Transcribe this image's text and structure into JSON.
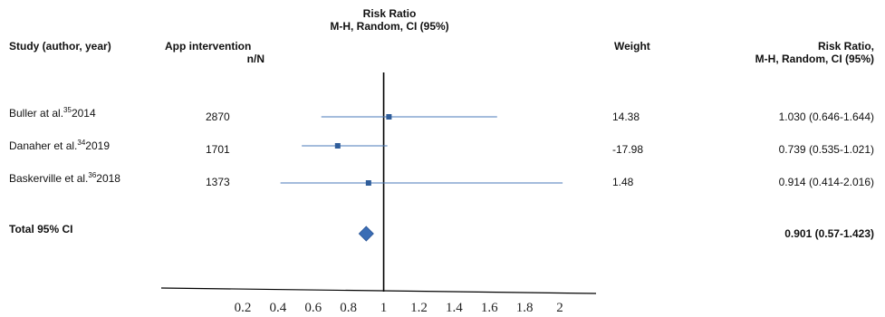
{
  "header": {
    "center_title_line1": "Risk Ratio",
    "center_title_line2": "M-H, Random, CI (95%)",
    "study_col": "Study (author, year)",
    "app_col_line1": "App intervention",
    "app_col_line2": "n/N",
    "weight_col": "Weight",
    "rr_col_line1": "Risk Ratio,",
    "rr_col_line2": "M-H, Random, CI (95%)"
  },
  "rows": [
    {
      "author": "Buller at al.",
      "ref": "35",
      "year": "2014",
      "n": "2870",
      "weight": "14.38",
      "rr_text": "1.030 (0.646-1.644)"
    },
    {
      "author": "Danaher et al.",
      "ref": "34",
      "year": "2019",
      "n": "1701",
      "weight": "-17.98",
      "rr_text": "0.739 (0.535-1.021)"
    },
    {
      "author": "Baskerville et al.",
      "ref": "36",
      "year": "2018",
      "n": "1373",
      "weight": "1.48",
      "rr_text": "0.914 (0.414-2.016)"
    }
  ],
  "total": {
    "label": "Total 95% CI",
    "rr_text": "0.901 (0.57-1.423)"
  },
  "colors": {
    "ci_line": "#4a7ab8",
    "marker": "#2f5d9a",
    "diamond": "#3a6db5",
    "axis": "#000000"
  },
  "chart_data": {
    "type": "forest",
    "x_ticks": [
      "0.2",
      "0.4",
      "0.6",
      "0.8",
      "1",
      "1.2",
      "1.4",
      "1.6",
      "1.8",
      "2"
    ],
    "xlim": [
      0.2,
      2
    ],
    "reference_line": 1,
    "studies": [
      {
        "name": "Buller at al. 2014",
        "rr": 1.03,
        "lower": 0.646,
        "upper": 1.644
      },
      {
        "name": "Danaher et al. 2019",
        "rr": 0.739,
        "lower": 0.535,
        "upper": 1.021
      },
      {
        "name": "Baskerville et al. 2018",
        "rr": 0.914,
        "lower": 0.414,
        "upper": 2.016
      }
    ],
    "pooled": {
      "rr": 0.901,
      "lower": 0.57,
      "upper": 1.423
    }
  }
}
